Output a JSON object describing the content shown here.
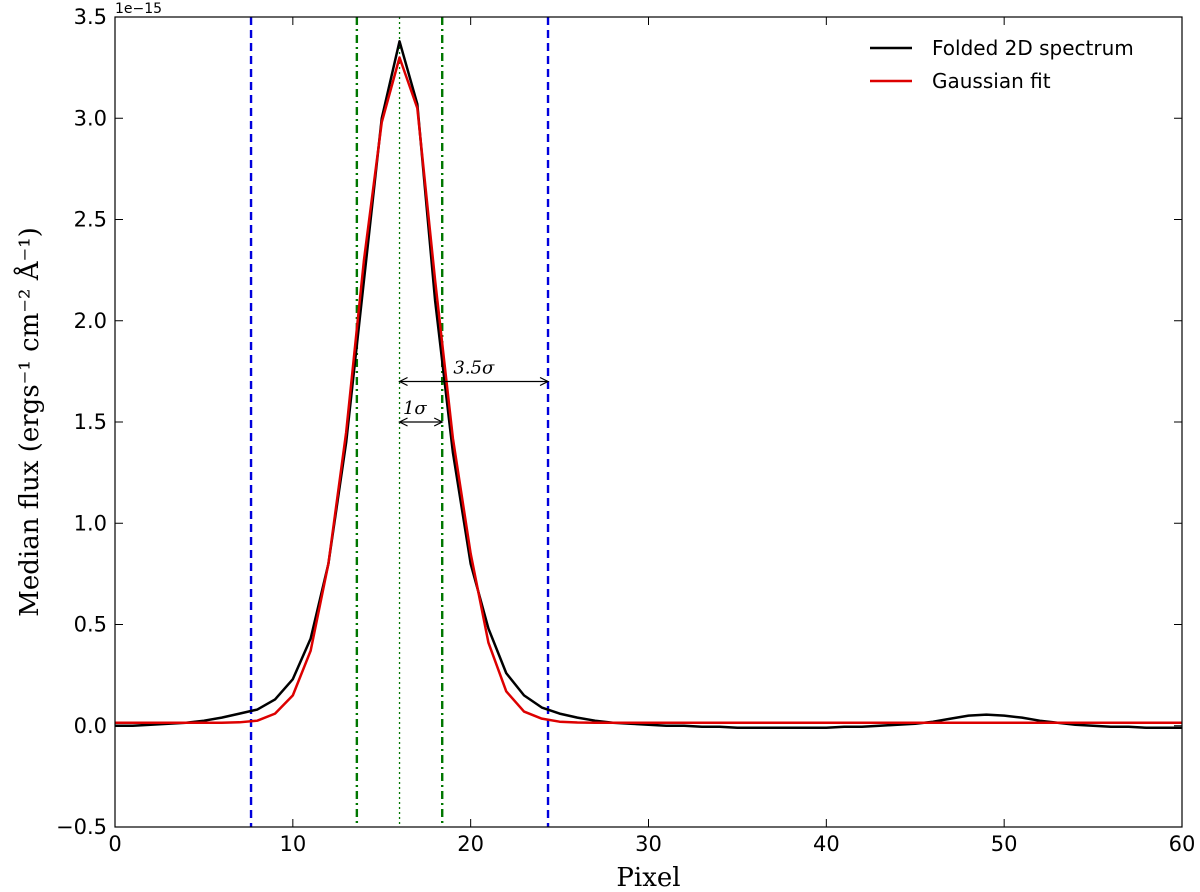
{
  "chart_data": {
    "type": "line",
    "xlabel": "Pixel",
    "ylabel": "Median flux (ergs⁻¹ cm⁻² Å⁻¹)",
    "offset_label": "1e−15",
    "xlim": [
      0,
      60
    ],
    "ylim": [
      -0.5,
      3.5
    ],
    "x_ticks": [
      0,
      10,
      20,
      30,
      40,
      50,
      60
    ],
    "x_tick_labels": [
      "0",
      "10",
      "20",
      "30",
      "40",
      "50",
      "60"
    ],
    "y_ticks": [
      -0.5,
      0.0,
      0.5,
      1.0,
      1.5,
      2.0,
      2.5,
      3.0,
      3.5
    ],
    "y_tick_labels": [
      "−0.5",
      "0.0",
      "0.5",
      "1.0",
      "1.5",
      "2.0",
      "2.5",
      "3.0",
      "3.5"
    ],
    "legend_position": "top-right",
    "series": [
      {
        "name": "Folded 2D spectrum",
        "color": "#000000",
        "x": [
          0,
          1,
          2,
          3,
          4,
          5,
          6,
          7,
          8,
          9,
          10,
          11,
          12,
          13,
          14,
          15,
          16,
          17,
          18,
          19,
          20,
          21,
          22,
          23,
          24,
          25,
          26,
          27,
          28,
          29,
          30,
          31,
          32,
          33,
          34,
          35,
          36,
          37,
          38,
          39,
          40,
          41,
          42,
          43,
          44,
          45,
          46,
          47,
          48,
          49,
          50,
          51,
          52,
          53,
          54,
          55,
          56,
          57,
          58,
          59,
          60
        ],
        "y": [
          0.0,
          0.0,
          0.005,
          0.01,
          0.015,
          0.025,
          0.04,
          0.06,
          0.08,
          0.13,
          0.23,
          0.43,
          0.8,
          1.4,
          2.2,
          3.0,
          3.38,
          3.07,
          2.1,
          1.35,
          0.8,
          0.48,
          0.26,
          0.15,
          0.09,
          0.06,
          0.04,
          0.025,
          0.015,
          0.01,
          0.005,
          0.0,
          0.0,
          -0.005,
          -0.005,
          -0.01,
          -0.01,
          -0.01,
          -0.01,
          -0.01,
          -0.01,
          -0.005,
          -0.005,
          0.0,
          0.005,
          0.01,
          0.02,
          0.035,
          0.05,
          0.055,
          0.05,
          0.04,
          0.025,
          0.015,
          0.005,
          0.0,
          -0.005,
          -0.005,
          -0.01,
          -0.01,
          -0.01
        ]
      },
      {
        "name": "Gaussian fit",
        "color": "#dd0000",
        "x": [
          0,
          1,
          2,
          3,
          4,
          5,
          6,
          7,
          8,
          9,
          10,
          11,
          12,
          13,
          14,
          15,
          16,
          17,
          18,
          19,
          20,
          21,
          22,
          23,
          24,
          25,
          26,
          27,
          28,
          29,
          30,
          31,
          32,
          33,
          34,
          35,
          36,
          37,
          38,
          39,
          40,
          41,
          42,
          43,
          44,
          45,
          46,
          47,
          48,
          49,
          50,
          51,
          52,
          53,
          54,
          55,
          56,
          57,
          58,
          59,
          60
        ],
        "y": [
          0.015,
          0.015,
          0.015,
          0.015,
          0.015,
          0.015,
          0.015,
          0.017,
          0.025,
          0.06,
          0.15,
          0.37,
          0.8,
          1.45,
          2.3,
          2.98,
          3.3,
          3.05,
          2.2,
          1.42,
          0.85,
          0.41,
          0.17,
          0.07,
          0.035,
          0.02,
          0.016,
          0.015,
          0.015,
          0.015,
          0.015,
          0.015,
          0.015,
          0.015,
          0.015,
          0.015,
          0.015,
          0.015,
          0.015,
          0.015,
          0.015,
          0.015,
          0.015,
          0.015,
          0.015,
          0.015,
          0.015,
          0.015,
          0.015,
          0.015,
          0.015,
          0.015,
          0.015,
          0.015,
          0.015,
          0.015,
          0.015,
          0.015,
          0.015,
          0.015,
          0.015
        ]
      }
    ],
    "vertical_lines": [
      {
        "x": 7.65,
        "style": "dashed",
        "color": "#0000dd"
      },
      {
        "x": 24.35,
        "style": "dashed",
        "color": "#0000dd"
      },
      {
        "x": 13.6,
        "style": "dashdot",
        "color": "#007700"
      },
      {
        "x": 18.4,
        "style": "dashdot",
        "color": "#007700"
      },
      {
        "x": 16.0,
        "style": "dotted",
        "color": "#007700"
      }
    ],
    "annotations": [
      {
        "text": "3.5σ",
        "x_from": 16.0,
        "x_to": 24.35,
        "y": 1.7
      },
      {
        "text": "1σ",
        "x_from": 16.0,
        "x_to": 18.4,
        "y": 1.5
      }
    ]
  }
}
